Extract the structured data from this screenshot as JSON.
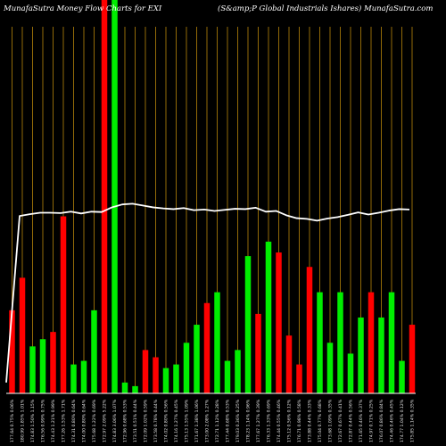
{
  "header": {
    "left_title": "MunafaSutra  Money Flow  Charts for EXI",
    "right_title": "(S&amp;P Global Industrials Ishares) MunafaSutra.com"
  },
  "colors": {
    "background": "#000000",
    "up": "#00ee00",
    "down": "#ff0000",
    "grid": "#b8860b",
    "line": "#ffffff"
  },
  "chart_data": {
    "type": "bar",
    "title": "MunafaSutra  Money Flow  Charts for EXI",
    "subtitle": "(S&amp;P Global Industrials Ishares) MunafaSutra.com",
    "grid": true,
    "series": [
      {
        "values": [
          23,
          32,
          13,
          15,
          17,
          49,
          8,
          9,
          23,
          999,
          999,
          3,
          2,
          12,
          10,
          7,
          8,
          14,
          19,
          25,
          28,
          9,
          12,
          38,
          22,
          42,
          39,
          16,
          8,
          35,
          28,
          14,
          28,
          11,
          21,
          28,
          21,
          28,
          9,
          19
        ],
        "colors": [
          "red",
          "red",
          "green",
          "green",
          "red",
          "red",
          "green",
          "green",
          "green",
          "red",
          "green",
          "green",
          "green",
          "red",
          "red",
          "green",
          "green",
          "green",
          "green",
          "red",
          "green",
          "green",
          "green",
          "green",
          "red",
          "green",
          "red",
          "red",
          "red",
          "red",
          "green",
          "green",
          "green",
          "green",
          "green",
          "red",
          "green",
          "green",
          "green",
          "red"
        ],
        "clipped": [
          false,
          false,
          false,
          false,
          false,
          false,
          false,
          false,
          false,
          true,
          true,
          false,
          false,
          false,
          false,
          false,
          false,
          false,
          false,
          false,
          false,
          false,
          false,
          false,
          false,
          false,
          false,
          false,
          false,
          false,
          false,
          false,
          false,
          false,
          false,
          false,
          false,
          false,
          false,
          false
        ]
      }
    ],
    "line_values": [
      100,
      98,
      98.4,
      98.6,
      98.5,
      98.4,
      98.6,
      98.5,
      98.6,
      98.4,
      98.5,
      99.5,
      99.5,
      99.2,
      98.9,
      98.7,
      98.6,
      98.6,
      98.3,
      98.5,
      98.4,
      98.5,
      98.5,
      98.6,
      98.6,
      98.4,
      98.5,
      98.2,
      98.0,
      97.9,
      98.1,
      98.0,
      97.7,
      97.6,
      97.7,
      98.0,
      98.3,
      98.5,
      98.6,
      98.5
    ],
    "line_plot_values": [
      3,
      49.1,
      49.6,
      50.0,
      50.0,
      49.9,
      50.3,
      49.8,
      50.3,
      50.2,
      51.5,
      52.3,
      52.5,
      52.0,
      51.5,
      51.2,
      51.0,
      51.3,
      50.7,
      50.9,
      50.5,
      50.8,
      51.1,
      51.0,
      51.4,
      50.3,
      50.5,
      49.3,
      48.5,
      48.3,
      47.8,
      48.4,
      48.8,
      49.4,
      50.1,
      49.5,
      50.0,
      50.6,
      51.0,
      50.9
    ],
    "labels": [
      "177.64 0.75% 0.06%",
      "180.99 1.85% 1.01%",
      "174.83 1.50% 1.15%",
      "176.56 0.99% 0.75%",
      "174.43 1.21% 0.99%",
      "177.26 1.53% 1.71%",
      "174.31 0.80% 0.64%",
      "174.00 0.80% 0.64%",
      "175.68 1.22% 0.69%",
      "172.97 2.09% 5.22%",
      "174.83 3.06% 1.07%",
      "172.96 0.68% 0.53%",
      "173.51 0.51% 0.44%",
      "172.09 1.02% 0.59%",
      "173.58 0.78% 0.44%",
      "174.02 0.80% 0.56%",
      "174.16 1.27% 0.45%",
      "175.13 1.55% 1.09%",
      "171.67 1.38% 1.06%",
      "173.00 2.08% 1.27%",
      "172.71 1.12% 0.28%",
      "177.44 0.68% 0.53%",
      "179.03 0.36% 0.25%",
      "178.23 1.14% 0.96%",
      "177.67 1.27% 0.39%",
      "176.33 1.33% 0.69%",
      "174.44 0.55% 0.46%",
      "175.12 0.56% 0.12%",
      "176.71 0.98% 0.58%",
      "173.88 0.44% 0.33%",
      "175.04 0.77% 0.68%",
      "173.68 1.09% 0.35%",
      "172.67 0.67% 0.41%",
      "172.87 0.44% 0.56%",
      "171.65 0.46% 0.37%",
      "174.97 0.71% 0.25%",
      "176.07 0.86% 0.84%",
      "174.46 0.46% 0.45%",
      "174.77 1.04% 0.12%",
      "175.85 1.14% 0.35%"
    ]
  }
}
